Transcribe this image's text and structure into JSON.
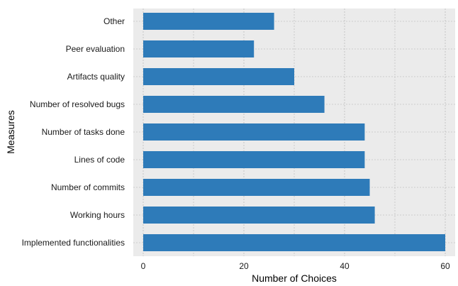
{
  "chart_data": {
    "type": "bar",
    "orientation": "horizontal",
    "categories": [
      "Other",
      "Peer evaluation",
      "Artifacts quality",
      "Number of resolved bugs",
      "Number of tasks done",
      "Lines of code",
      "Number of commits",
      "Working hours",
      "Implemented functionalities"
    ],
    "values": [
      26,
      22,
      30,
      36,
      44,
      44,
      45,
      46,
      60
    ],
    "xlabel": "Number of Choices",
    "ylabel": "Measures",
    "xlim": [
      0,
      62
    ],
    "xticks": [
      0,
      20,
      40,
      60
    ],
    "grid": true,
    "legend": "none",
    "colors": {
      "bar": "#2e7bb9",
      "panel": "#ebebeb",
      "grid": "#c4c4c4"
    }
  }
}
